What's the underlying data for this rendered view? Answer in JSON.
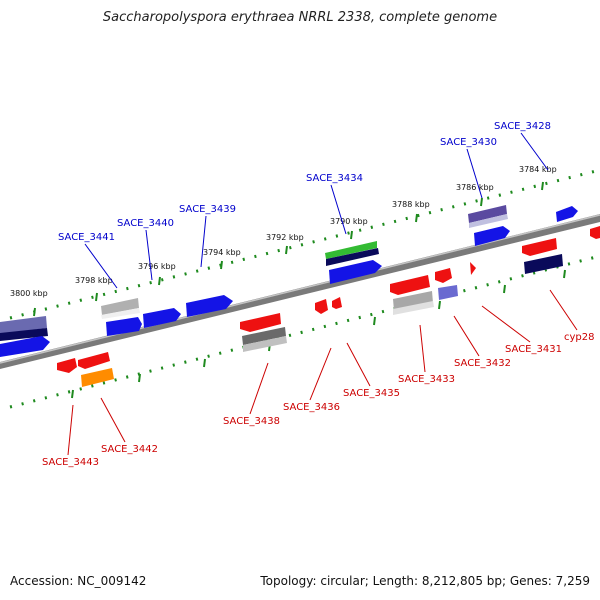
{
  "title": "Saccharopolyspora erythraea NRRL 2338, complete genome",
  "footer": {
    "accession": "Accession: NC_009142",
    "summary": "Topology: circular; Length: 8,212,805 bp; Genes: 7,259"
  },
  "colors": {
    "backbone": "#7a7a7a",
    "tick": "#1e8a1e",
    "label_top": "#0000cc",
    "label_bottom": "#cc0000"
  },
  "kbp_marks": [
    "3800 kbp",
    "3798 kbp",
    "3796 kbp",
    "3794 kbp",
    "3792 kbp",
    "3790 kbp",
    "3788 kbp",
    "3786 kbp",
    "3784 kbp"
  ],
  "genes_top": [
    "SACE_3441",
    "SACE_3440",
    "SACE_3439",
    "SACE_3434",
    "SACE_3430",
    "SACE_3428"
  ],
  "genes_bottom": [
    "SACE_3443",
    "SACE_3442",
    "SACE_3438",
    "SACE_3436",
    "SACE_3435",
    "SACE_3433",
    "SACE_3432",
    "SACE_3431",
    "cyp28"
  ]
}
